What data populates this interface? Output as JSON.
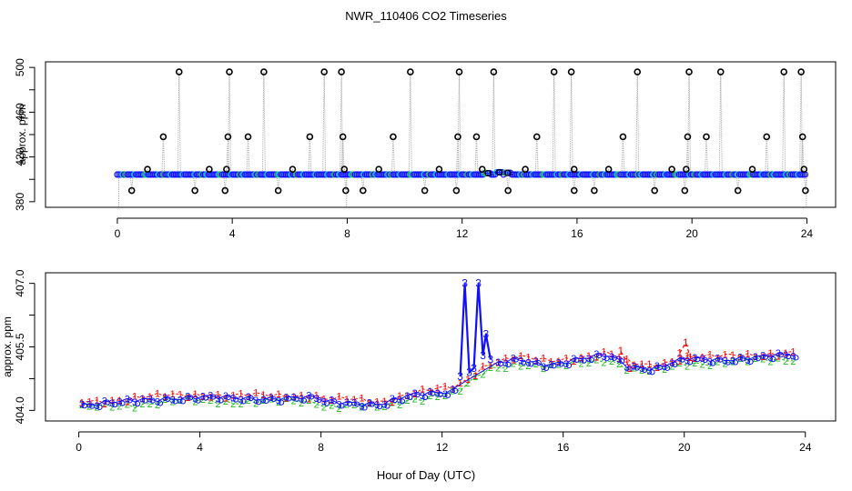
{
  "title": "NWR_110406  CO2 Timeseries",
  "xlabel": "Hour of Day (UTC)",
  "colors": {
    "black": "#000000",
    "blue": "#1010ff",
    "cyan": "#00cccc",
    "red": "#ff0000",
    "green": "#22bb22",
    "grey": "#aaaaaa"
  },
  "chart_data": [
    {
      "type": "scatter",
      "name": "top-panel",
      "ylabel": "approx. ppm",
      "xlim": [
        -2.5,
        25
      ],
      "ylim": [
        375,
        505
      ],
      "xticks": [
        0,
        4,
        8,
        12,
        16,
        20,
        24
      ],
      "yticks": [
        380,
        420,
        460,
        500
      ],
      "baseline": 404.3,
      "spikes_high": [
        [
          2.15,
          496
        ],
        [
          3.9,
          496
        ],
        [
          5.1,
          496
        ],
        [
          7.2,
          496
        ],
        [
          7.8,
          496
        ],
        [
          10.2,
          496
        ],
        [
          11.9,
          496
        ],
        [
          13.1,
          496
        ],
        [
          15.2,
          496
        ],
        [
          15.8,
          496
        ],
        [
          18.1,
          496
        ],
        [
          19.9,
          496
        ],
        [
          21.0,
          496
        ],
        [
          23.2,
          496
        ],
        [
          23.8,
          496
        ]
      ],
      "spikes_mid": [
        [
          1.6,
          438
        ],
        [
          3.85,
          438
        ],
        [
          4.55,
          438
        ],
        [
          6.7,
          438
        ],
        [
          7.85,
          438
        ],
        [
          9.6,
          438
        ],
        [
          11.85,
          438
        ],
        [
          12.5,
          438
        ],
        [
          14.6,
          438
        ],
        [
          17.6,
          438
        ],
        [
          19.85,
          438
        ],
        [
          20.5,
          438
        ],
        [
          22.6,
          438
        ],
        [
          23.85,
          438
        ]
      ],
      "spikes_low": [
        [
          1.05,
          409
        ],
        [
          3.2,
          409
        ],
        [
          3.8,
          409
        ],
        [
          6.1,
          409
        ],
        [
          7.9,
          409
        ],
        [
          9.1,
          409
        ],
        [
          11.2,
          409
        ],
        [
          12.7,
          409
        ],
        [
          14.2,
          409
        ],
        [
          15.9,
          409
        ],
        [
          17.1,
          409
        ],
        [
          19.3,
          409
        ],
        [
          19.8,
          409
        ],
        [
          22.1,
          409
        ],
        [
          23.9,
          409
        ]
      ],
      "spikes_neg": [
        [
          0.5,
          390
        ],
        [
          2.7,
          390
        ],
        [
          3.75,
          390
        ],
        [
          5.6,
          390
        ],
        [
          7.95,
          390
        ],
        [
          8.55,
          390
        ],
        [
          10.7,
          390
        ],
        [
          11.8,
          390
        ],
        [
          13.6,
          390
        ],
        [
          15.9,
          390
        ],
        [
          16.6,
          390
        ],
        [
          18.7,
          390
        ],
        [
          19.75,
          390
        ],
        [
          21.6,
          390
        ],
        [
          23.95,
          390
        ]
      ],
      "blips": [
        [
          12.9,
          405.5
        ],
        [
          13.3,
          406.3
        ],
        [
          13.6,
          405.8
        ]
      ]
    },
    {
      "type": "line",
      "name": "bottom-panel",
      "ylabel": "approx. ppm",
      "xlim": [
        -1.1,
        25
      ],
      "ylim": [
        403.75,
        407.25
      ],
      "xticks": [
        0,
        4,
        8,
        12,
        16,
        20,
        24
      ],
      "yticks": [
        404.0,
        405.5,
        407.0
      ],
      "ytick_labels": [
        "404.0",
        "405.5",
        "407.0"
      ],
      "series_labels": [
        "1",
        "2",
        "3"
      ],
      "profile": [
        [
          0,
          404.15
        ],
        [
          1.5,
          404.2
        ],
        [
          3,
          404.3
        ],
        [
          4,
          404.32
        ],
        [
          5,
          404.28
        ],
        [
          6,
          404.3
        ],
        [
          7,
          404.3
        ],
        [
          8,
          404.28
        ],
        [
          8.1,
          404.2
        ],
        [
          9,
          404.2
        ],
        [
          10,
          404.15
        ],
        [
          11,
          404.35
        ],
        [
          12,
          404.45
        ],
        [
          12.5,
          404.5
        ],
        [
          13.5,
          405.05
        ],
        [
          14.5,
          405.2
        ],
        [
          15.5,
          405.1
        ],
        [
          16.5,
          405.2
        ],
        [
          17.5,
          405.3
        ],
        [
          18.2,
          405.05
        ],
        [
          19,
          405.0
        ],
        [
          20,
          405.2
        ],
        [
          21,
          405.2
        ],
        [
          22,
          405.25
        ],
        [
          23.5,
          405.3
        ],
        [
          24,
          405.3
        ]
      ],
      "offsets": {
        "s1": 0.06,
        "s2": -0.08,
        "s3": 0.0
      },
      "spikes": [
        {
          "series": "3",
          "points": [
            [
              12.6,
              404.8
            ],
            [
              12.75,
              407.0
            ],
            [
              12.9,
              404.9
            ],
            [
              13.05,
              405.0
            ],
            [
              13.2,
              407.0
            ],
            [
              13.35,
              405.3
            ],
            [
              13.45,
              405.8
            ],
            [
              13.6,
              405.2
            ]
          ]
        },
        {
          "series": "1",
          "points": [
            [
              17.9,
              405.4
            ],
            [
              18.2,
              405.0
            ]
          ]
        },
        {
          "series": "1",
          "points": [
            [
              19.85,
              405.35
            ],
            [
              20.05,
              405.6
            ],
            [
              20.2,
              405.25
            ]
          ]
        }
      ]
    }
  ]
}
